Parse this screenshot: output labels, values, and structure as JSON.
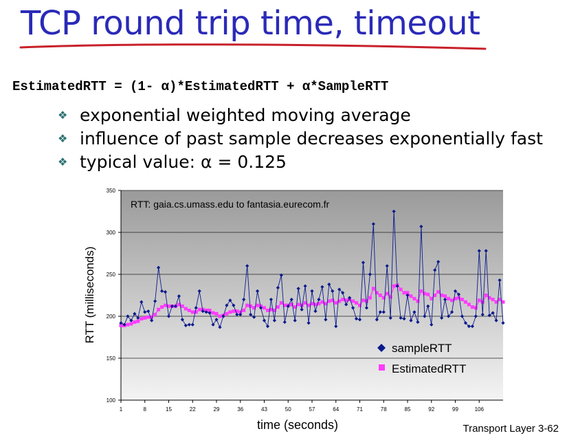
{
  "slide": {
    "title": "TCP round trip time, timeout",
    "formula": "EstimatedRTT = (1- α)*EstimatedRTT + α*SampleRTT",
    "bullets": [
      "exponential weighted moving average",
      "influence of past sample decreases exponentially fast",
      "typical value: α  = 0.125"
    ],
    "footer": "Transport Layer 3-62",
    "colors": {
      "title": "#2a2ab8",
      "underline": "#c8202a",
      "sample": "#0a1a8c",
      "estimated": "#ff3cff"
    }
  },
  "chart_data": {
    "type": "line",
    "title": "RTT: gaia.cs.umass.edu to fantasia.eurecom.fr",
    "xlabel": "time (seconds)",
    "ylabel": "RTT (milliseconds)",
    "ylim": [
      100,
      350
    ],
    "yticks": [
      "100",
      "150",
      "200",
      "250",
      "300",
      "350"
    ],
    "xticks": [
      "1",
      "8",
      "15",
      "22",
      "29",
      "36",
      "43",
      "50",
      "57",
      "64",
      "71",
      "78",
      "85",
      "92",
      "99",
      "106"
    ],
    "xlim": [
      1,
      113
    ],
    "grid": true,
    "legend_position": "bottom-right",
    "series": [
      {
        "name": "sampleRTT",
        "marker": "diamond",
        "x": [
          1,
          2,
          3,
          4,
          5,
          6,
          7,
          8,
          9,
          10,
          11,
          12,
          13,
          14,
          15,
          16,
          17,
          18,
          19,
          20,
          21,
          22,
          23,
          24,
          25,
          26,
          27,
          28,
          29,
          30,
          31,
          32,
          33,
          34,
          35,
          36,
          37,
          38,
          39,
          40,
          41,
          42,
          43,
          44,
          45,
          46,
          47,
          48,
          49,
          50,
          51,
          52,
          53,
          54,
          55,
          56,
          57,
          58,
          59,
          60,
          61,
          62,
          63,
          64,
          65,
          66,
          67,
          68,
          69,
          70,
          71,
          72,
          73,
          74,
          75,
          76,
          77,
          78,
          79,
          80,
          81,
          82,
          83,
          84,
          85,
          86,
          87,
          88,
          89,
          90,
          91,
          92,
          93,
          94,
          95,
          96,
          97,
          98,
          99,
          100,
          101,
          102,
          103,
          104,
          105,
          106,
          107,
          108,
          109,
          110,
          111,
          112,
          113
        ],
        "values": [
          192,
          190,
          200,
          195,
          203,
          198,
          217,
          205,
          206,
          195,
          218,
          258,
          230,
          229,
          200,
          212,
          212,
          224,
          196,
          189,
          190,
          190,
          210,
          230,
          206,
          205,
          204,
          190,
          196,
          187,
          200,
          213,
          219,
          213,
          202,
          202,
          220,
          260,
          202,
          199,
          230,
          210,
          195,
          188,
          220,
          195,
          234,
          249,
          193,
          212,
          220,
          195,
          233,
          208,
          236,
          192,
          230,
          206,
          220,
          235,
          196,
          238,
          230,
          188,
          232,
          228,
          214,
          222,
          210,
          197,
          196,
          264,
          210,
          250,
          310,
          196,
          205,
          205,
          260,
          198,
          325,
          236,
          198,
          197,
          225,
          195,
          205,
          193,
          307,
          200,
          212,
          190,
          255,
          265,
          198,
          220,
          200,
          205,
          230,
          226,
          200,
          192,
          188,
          188,
          200,
          278,
          202,
          278,
          201,
          204,
          195,
          243,
          192
        ]
      },
      {
        "name": "EstimatedRTT",
        "marker": "square",
        "x": [
          1,
          2,
          3,
          4,
          5,
          6,
          7,
          8,
          9,
          10,
          11,
          12,
          13,
          14,
          15,
          16,
          17,
          18,
          19,
          20,
          21,
          22,
          23,
          24,
          25,
          26,
          27,
          28,
          29,
          30,
          31,
          32,
          33,
          34,
          35,
          36,
          37,
          38,
          39,
          40,
          41,
          42,
          43,
          44,
          45,
          46,
          47,
          48,
          49,
          50,
          51,
          52,
          53,
          54,
          55,
          56,
          57,
          58,
          59,
          60,
          61,
          62,
          63,
          64,
          65,
          66,
          67,
          68,
          69,
          70,
          71,
          72,
          73,
          74,
          75,
          76,
          77,
          78,
          79,
          80,
          81,
          82,
          83,
          84,
          85,
          86,
          87,
          88,
          89,
          90,
          91,
          92,
          93,
          94,
          95,
          96,
          97,
          98,
          99,
          100,
          101,
          102,
          103,
          104,
          105,
          106,
          107,
          108,
          109,
          110,
          111,
          112,
          113
        ],
        "values": [
          189,
          189,
          190,
          191,
          193,
          194,
          197,
          198,
          199,
          199,
          202,
          208,
          211,
          213,
          212,
          212,
          212,
          214,
          212,
          209,
          207,
          205,
          205,
          208,
          208,
          207,
          207,
          204,
          203,
          200,
          201,
          203,
          205,
          206,
          206,
          205,
          207,
          213,
          212,
          210,
          213,
          212,
          210,
          207,
          208,
          207,
          211,
          216,
          213,
          213,
          214,
          211,
          214,
          213,
          216,
          213,
          215,
          214,
          215,
          217,
          215,
          218,
          219,
          216,
          218,
          220,
          219,
          220,
          218,
          216,
          213,
          219,
          218,
          222,
          233,
          228,
          225,
          222,
          227,
          223,
          236,
          237,
          232,
          228,
          228,
          224,
          221,
          218,
          230,
          227,
          226,
          221,
          225,
          229,
          225,
          224,
          221,
          219,
          221,
          222,
          220,
          217,
          214,
          211,
          210,
          219,
          217,
          225,
          222,
          220,
          217,
          220,
          217
        ]
      }
    ]
  }
}
